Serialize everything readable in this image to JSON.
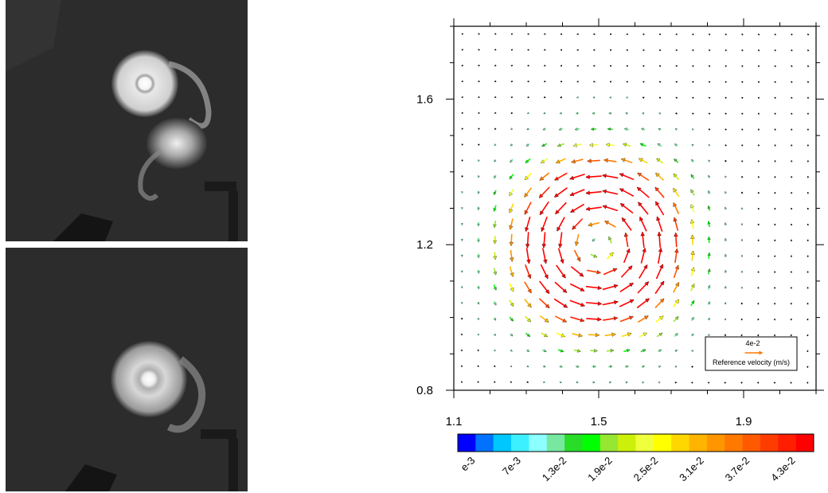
{
  "photos": [
    {
      "name": "dye-photo-dipole-1"
    },
    {
      "name": "dye-photo-dipole-2"
    }
  ],
  "chart_data": {
    "type": "vector-field",
    "x_range": [
      1.1,
      2.1
    ],
    "y_range": [
      0.8,
      1.8
    ],
    "x_ticks": [
      "1.1",
      "1.5",
      "1.9"
    ],
    "y_ticks": [
      "0.8",
      "1.2",
      "1.6"
    ],
    "vortex_center": [
      1.5,
      1.2
    ],
    "vortex_core_radius": 0.14,
    "vortex_sense": "counterclockwise",
    "max_speed": 0.043,
    "grid_x": 22,
    "grid_y": 23,
    "reference_vector": {
      "value": "4e-2",
      "label": "Reference velocity (m/s)"
    },
    "colorbar": {
      "labels": [
        "e-3",
        "7e-3",
        "1.3e-2",
        "1.9e-2",
        "2.5e-2",
        "3.1e-2",
        "3.7e-2",
        "4.3e-2"
      ],
      "colors": [
        "#0000ff",
        "#0072ff",
        "#00c8ff",
        "#3cf0ff",
        "#8cffff",
        "#78e8a0",
        "#28dc28",
        "#00ff00",
        "#96e632",
        "#ccf00a",
        "#f0ff3c",
        "#ffff00",
        "#ffd700",
        "#ffb400",
        "#ff9600",
        "#ff7800",
        "#ff5a00",
        "#ff3c00",
        "#ff1e00",
        "#ff0000"
      ]
    }
  }
}
